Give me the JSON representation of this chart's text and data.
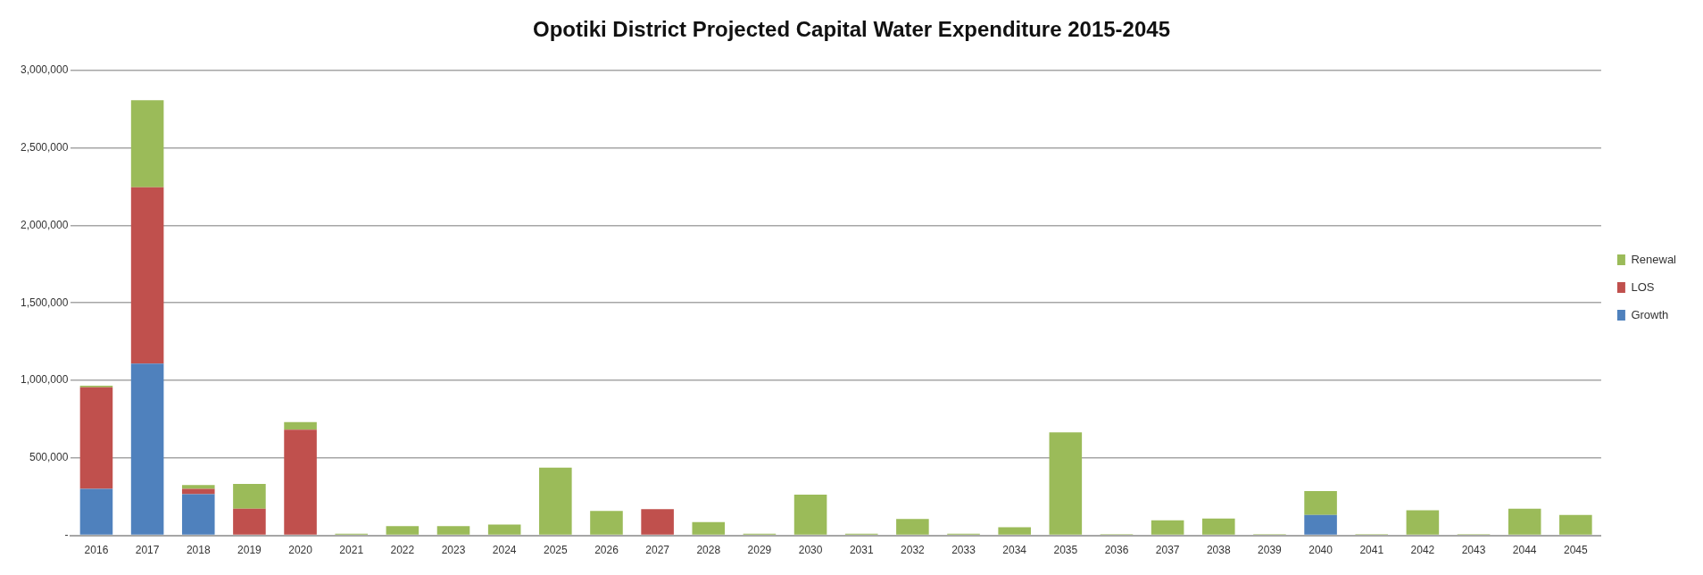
{
  "chart_data": {
    "type": "bar",
    "title": "Opotiki District Projected Capital Water Expenditure 2015-2045",
    "stacked": true,
    "grid": "y",
    "legend": "right",
    "categories": [
      "2016",
      "2017",
      "2018",
      "2019",
      "2020",
      "2021",
      "2022",
      "2023",
      "2024",
      "2025",
      "2026",
      "2027",
      "2028",
      "2029",
      "2030",
      "2031",
      "2032",
      "2033",
      "2034",
      "2035",
      "2036",
      "2037",
      "2038",
      "2039",
      "2040",
      "2041",
      "2042",
      "2043",
      "2044",
      "2045"
    ],
    "series": [
      {
        "name": "Growth",
        "color": "#4f81bd",
        "values": [
          300000,
          1108000,
          266000,
          0,
          0,
          0,
          0,
          0,
          0,
          0,
          0,
          0,
          0,
          0,
          0,
          0,
          0,
          0,
          0,
          0,
          0,
          0,
          0,
          0,
          131000,
          0,
          0,
          0,
          0,
          0
        ]
      },
      {
        "name": "LOS",
        "color": "#c0504d",
        "values": [
          655000,
          1138000,
          34000,
          172000,
          682000,
          0,
          0,
          0,
          0,
          0,
          0,
          169000,
          0,
          0,
          0,
          0,
          0,
          0,
          0,
          0,
          0,
          0,
          0,
          0,
          0,
          0,
          0,
          0,
          0,
          0
        ]
      },
      {
        "name": "Renewal",
        "color": "#9bbb59",
        "values": [
          10000,
          562000,
          25000,
          160000,
          49000,
          10000,
          59000,
          59000,
          69000,
          437000,
          157000,
          0,
          86000,
          10000,
          263000,
          10000,
          106000,
          10000,
          53000,
          664000,
          8000,
          97000,
          108000,
          8000,
          154000,
          8000,
          162000,
          8000,
          172000,
          131000
        ]
      }
    ],
    "ylim": [
      0,
      3000000
    ],
    "yticks": [
      {
        "value": 0,
        "label": "-"
      },
      {
        "value": 500000,
        "label": "500,000"
      },
      {
        "value": 1000000,
        "label": "1,000,000"
      },
      {
        "value": 1500000,
        "label": "1,500,000"
      },
      {
        "value": 2000000,
        "label": "2,000,000"
      },
      {
        "value": 2500000,
        "label": "2,500,000"
      },
      {
        "value": 3000000,
        "label": "3,000,000"
      }
    ]
  }
}
